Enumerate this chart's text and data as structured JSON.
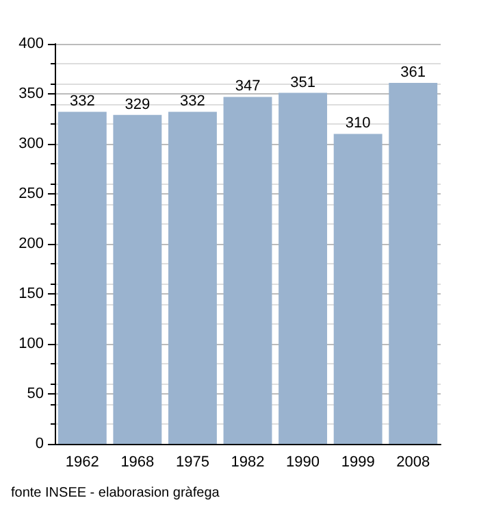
{
  "chart_data": {
    "type": "bar",
    "categories": [
      "1962",
      "1968",
      "1975",
      "1982",
      "1990",
      "1999",
      "2008"
    ],
    "values": [
      332,
      329,
      332,
      347,
      351,
      310,
      361
    ],
    "color": "#9ab3cf",
    "ylim": [
      0,
      400
    ],
    "yticks": [
      0,
      50,
      100,
      150,
      200,
      250,
      300,
      350,
      400
    ],
    "grid": "y",
    "data_labels": true,
    "annotations": [
      "fonte INSEE - elaborasion gràfega"
    ]
  }
}
